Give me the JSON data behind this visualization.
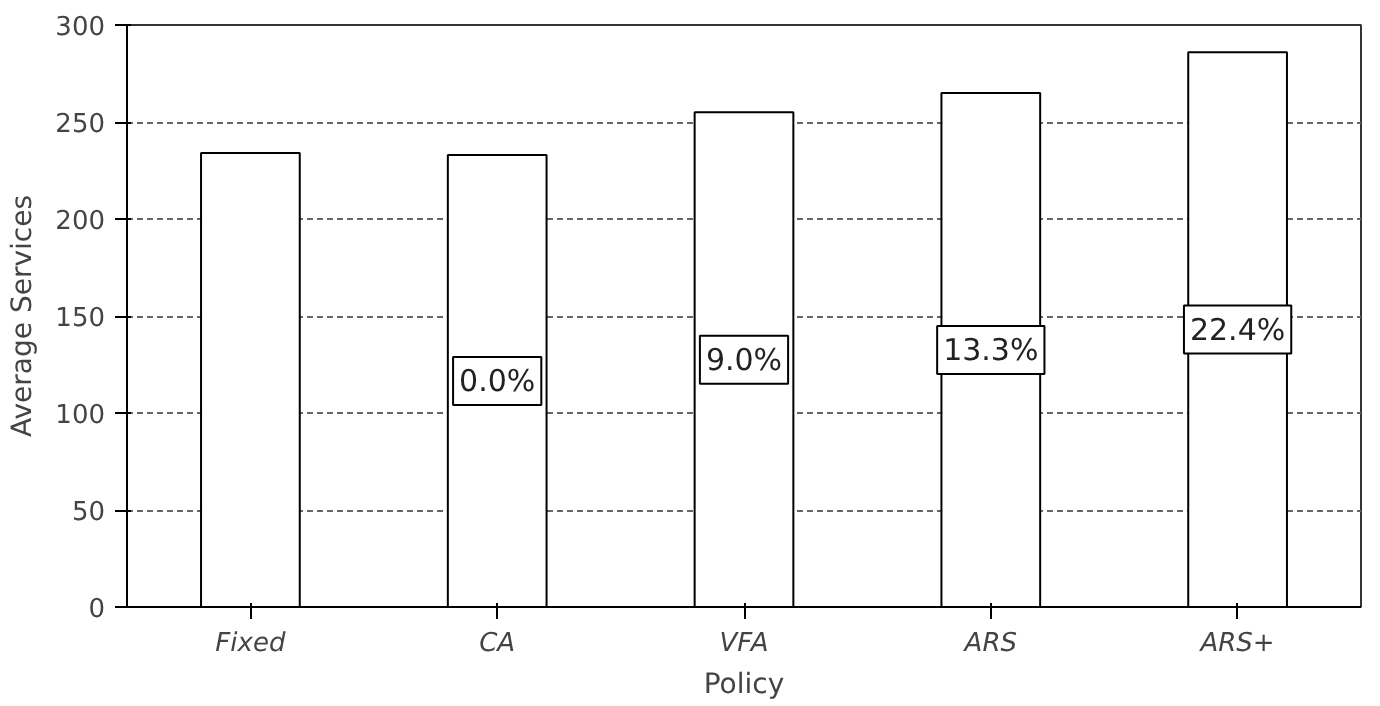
{
  "chart_data": {
    "type": "bar",
    "xlabel": "Policy",
    "ylabel": "Average Services",
    "categories": [
      "Fixed",
      "CA",
      "VFA",
      "ARS",
      "ARS+"
    ],
    "values": [
      234,
      233,
      255,
      265,
      286
    ],
    "annotations": [
      "0.0%",
      "9.0%",
      "13.3%",
      "22.4%"
    ],
    "color": "#ffffff",
    "ylim": [
      0,
      300
    ],
    "yticks": [
      0,
      50,
      100,
      150,
      200,
      250,
      300
    ],
    "grid": "y",
    "line_style": "dashed"
  }
}
